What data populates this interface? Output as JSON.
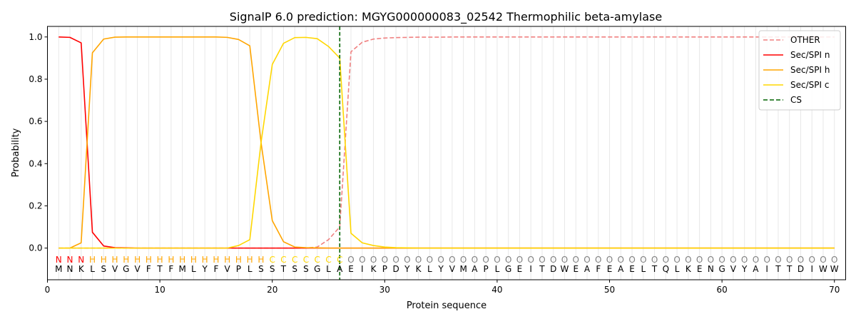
{
  "chart_data": {
    "type": "line",
    "title": "SignalP 6.0 prediction: MGYG000000083_02542 Thermophilic beta-amylase",
    "xlabel": "Protein sequence",
    "ylabel": "Probability",
    "xlim": [
      0,
      71
    ],
    "ylim": [
      -0.15,
      1.05
    ],
    "x_ticks": [
      0,
      10,
      20,
      30,
      40,
      50,
      60,
      70
    ],
    "y_ticks": [
      0.0,
      0.2,
      0.4,
      0.6,
      0.8,
      1.0
    ],
    "x_tick_labels": [
      "0",
      "10",
      "20",
      "30",
      "40",
      "50",
      "60",
      "70"
    ],
    "y_tick_labels": [
      "0.0",
      "0.2",
      "0.4",
      "0.6",
      "0.8",
      "1.0"
    ],
    "grid": "vertical lines at each residue",
    "legend_position": "top-right",
    "sequence": [
      "M",
      "N",
      "K",
      "L",
      "S",
      "V",
      "G",
      "V",
      "F",
      "T",
      "F",
      "M",
      "L",
      "Y",
      "F",
      "V",
      "P",
      "L",
      "S",
      "S",
      "T",
      "S",
      "S",
      "G",
      "L",
      "A",
      "E",
      "I",
      "K",
      "P",
      "D",
      "Y",
      "K",
      "L",
      "Y",
      "V",
      "M",
      "A",
      "P",
      "L",
      "G",
      "E",
      "I",
      "T",
      "D",
      "W",
      "E",
      "A",
      "F",
      "E",
      "A",
      "E",
      "L",
      "T",
      "Q",
      "L",
      "K",
      "E",
      "N",
      "G",
      "V",
      "Y",
      "A",
      "I",
      "T",
      "T",
      "D",
      "I",
      "W",
      "W"
    ],
    "labels": [
      "N",
      "N",
      "N",
      "H",
      "H",
      "H",
      "H",
      "H",
      "H",
      "H",
      "H",
      "H",
      "H",
      "H",
      "H",
      "H",
      "H",
      "H",
      "H",
      "C",
      "C",
      "C",
      "C",
      "C",
      "C",
      "C",
      "O",
      "O",
      "O",
      "O",
      "O",
      "O",
      "O",
      "O",
      "O",
      "O",
      "O",
      "O",
      "O",
      "O",
      "O",
      "O",
      "O",
      "O",
      "O",
      "O",
      "O",
      "O",
      "O",
      "O",
      "O",
      "O",
      "O",
      "O",
      "O",
      "O",
      "O",
      "O",
      "O",
      "O",
      "O",
      "O",
      "O",
      "O",
      "O",
      "O",
      "O",
      "O",
      "O",
      "O"
    ],
    "label_colors": {
      "N": "#ff0000",
      "H": "#ffa500",
      "C": "#ffd700",
      "O": "#808080"
    },
    "cleavage_site": 26,
    "series": [
      {
        "name": "OTHER",
        "color": "#f08080",
        "dash": "dashed",
        "values": [
          0,
          0,
          0,
          0,
          0,
          0,
          0,
          0,
          0,
          0,
          0,
          0,
          0,
          0,
          0,
          0,
          0,
          0,
          0,
          0,
          0,
          0,
          0,
          0.005,
          0.04,
          0.1,
          0.93,
          0.975,
          0.99,
          0.995,
          0.997,
          0.998,
          0.999,
          0.999,
          0.999,
          1,
          1,
          1,
          1,
          1,
          1,
          1,
          1,
          1,
          1,
          1,
          1,
          1,
          1,
          1,
          1,
          1,
          1,
          1,
          1,
          1,
          1,
          1,
          1,
          1,
          1,
          1,
          1,
          1,
          1,
          1,
          1,
          1,
          1,
          1
        ]
      },
      {
        "name": "Sec/SPI n",
        "color": "#ff0000",
        "dash": "solid",
        "values": [
          1.0,
          0.998,
          0.972,
          0.075,
          0.01,
          0.002,
          0.001,
          0,
          0,
          0,
          0,
          0,
          0,
          0,
          0,
          0,
          0,
          0,
          0,
          0,
          0,
          0,
          0,
          0,
          0,
          0,
          0,
          0,
          0,
          0,
          0,
          0,
          0,
          0,
          0,
          0,
          0,
          0,
          0,
          0,
          0,
          0,
          0,
          0,
          0,
          0,
          0,
          0,
          0,
          0,
          0,
          0,
          0,
          0,
          0,
          0,
          0,
          0,
          0,
          0,
          0,
          0,
          0,
          0,
          0,
          0,
          0,
          0,
          0,
          0
        ]
      },
      {
        "name": "Sec/SPI h",
        "color": "#ffa500",
        "dash": "solid",
        "values": [
          0,
          0,
          0.025,
          0.925,
          0.99,
          0.999,
          1,
          1,
          1,
          1,
          1,
          1,
          1,
          1,
          1,
          0.998,
          0.988,
          0.958,
          0.5,
          0.13,
          0.03,
          0.005,
          0.002,
          0.001,
          0,
          0,
          0,
          0,
          0,
          0,
          0,
          0,
          0,
          0,
          0,
          0,
          0,
          0,
          0,
          0,
          0,
          0,
          0,
          0,
          0,
          0,
          0,
          0,
          0,
          0,
          0,
          0,
          0,
          0,
          0,
          0,
          0,
          0,
          0,
          0,
          0,
          0,
          0,
          0,
          0,
          0,
          0,
          0,
          0,
          0
        ]
      },
      {
        "name": "Sec/SPI c",
        "color": "#ffd700",
        "dash": "solid",
        "values": [
          0,
          0,
          0,
          0,
          0,
          0,
          0,
          0,
          0,
          0,
          0,
          0,
          0,
          0,
          0,
          0,
          0.012,
          0.04,
          0.5,
          0.87,
          0.97,
          0.997,
          0.998,
          0.992,
          0.955,
          0.9,
          0.07,
          0.025,
          0.012,
          0.005,
          0.002,
          0.001,
          0,
          0,
          0,
          0,
          0,
          0,
          0,
          0,
          0,
          0,
          0,
          0,
          0,
          0,
          0,
          0,
          0,
          0,
          0,
          0,
          0,
          0,
          0,
          0,
          0,
          0,
          0,
          0,
          0,
          0,
          0,
          0,
          0,
          0,
          0,
          0,
          0,
          0
        ]
      }
    ],
    "legend": [
      {
        "name": "OTHER",
        "color": "#f08080",
        "dash": "dashed"
      },
      {
        "name": "Sec/SPI n",
        "color": "#ff0000",
        "dash": "solid"
      },
      {
        "name": "Sec/SPI h",
        "color": "#ffa500",
        "dash": "solid"
      },
      {
        "name": "Sec/SPI c",
        "color": "#ffd700",
        "dash": "solid"
      },
      {
        "name": "CS",
        "color": "#006400",
        "dash": "dashed"
      }
    ]
  }
}
